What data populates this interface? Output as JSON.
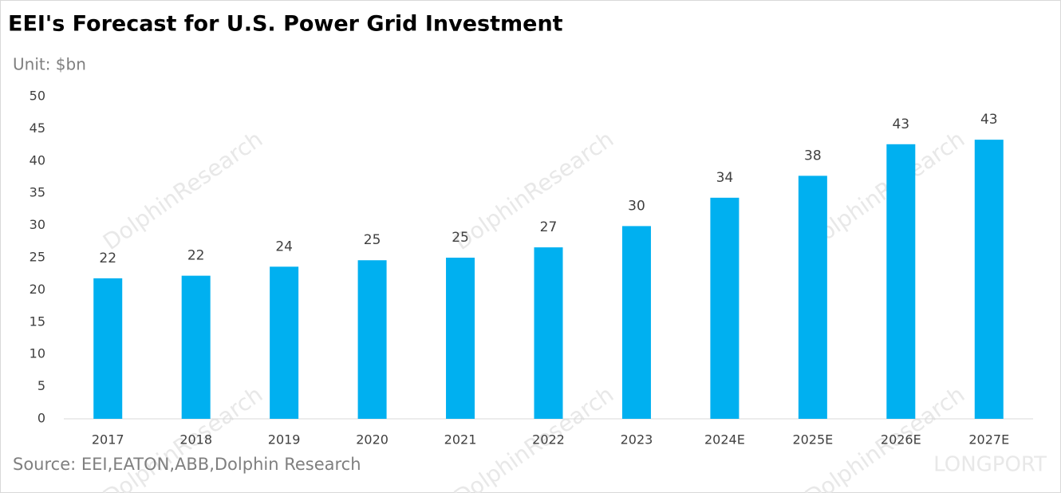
{
  "chart_data": {
    "type": "bar",
    "title": "EEI's Forecast for U.S. Power Grid Investment",
    "subtitle": "Unit: $bn",
    "source": "Source: EEI,EATON,ABB,Dolphin Research",
    "watermarks": [
      "DolphinResearch",
      "LONGPORT"
    ],
    "categories": [
      "2017",
      "2018",
      "2019",
      "2020",
      "2021",
      "2022",
      "2023",
      "2024E",
      "2025E",
      "2026E",
      "2027E"
    ],
    "values": [
      21.8,
      22.2,
      23.6,
      24.6,
      25.0,
      26.6,
      29.9,
      34.3,
      37.7,
      42.6,
      43.3
    ],
    "value_labels": [
      "22",
      "22",
      "24",
      "25",
      "25",
      "27",
      "30",
      "34",
      "38",
      "43",
      "43"
    ],
    "color": "#00b0f0",
    "ylim": [
      0,
      50
    ],
    "yticks": [
      0,
      5,
      10,
      15,
      20,
      25,
      30,
      35,
      40,
      45,
      50
    ],
    "grid": false
  }
}
